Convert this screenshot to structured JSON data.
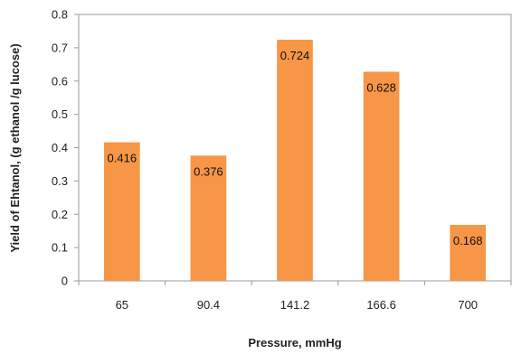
{
  "chart_data": {
    "type": "bar",
    "title": "",
    "categories": [
      "65",
      "90.4",
      "141.2",
      "166.6",
      "700"
    ],
    "values": [
      0.416,
      0.376,
      0.724,
      0.628,
      0.168
    ],
    "data_labels": [
      "0.416",
      "0.376",
      "0.724",
      "0.628",
      "0.168"
    ],
    "xlabel": "Pressure, mmHg",
    "ylabel": "Yield of Ehtanol, (g ethanol /g lucose)",
    "ylim": [
      0,
      0.8
    ],
    "yticks": [
      0,
      0.1,
      0.2,
      0.3,
      0.4,
      0.5,
      0.6,
      0.7,
      0.8
    ],
    "ytick_labels": [
      "0",
      "0.1",
      "0.2",
      "0.3",
      "0.4",
      "0.5",
      "0.6",
      "0.7",
      "0.8"
    ],
    "bar_color": "#F79646",
    "grid": false,
    "legend": "none"
  }
}
